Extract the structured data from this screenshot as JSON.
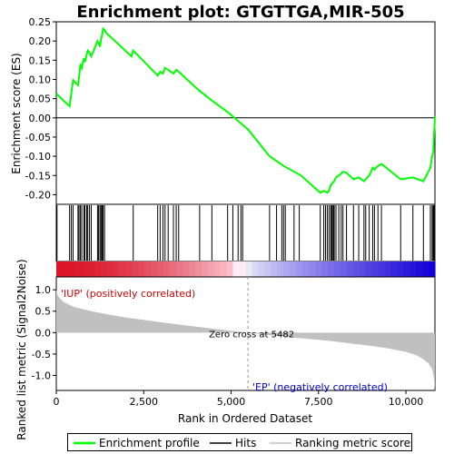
{
  "chart_data": {
    "type": "line",
    "title": "Enrichment plot: GTGTTGA,MIR-505",
    "top_panel": {
      "ylabel": "Enrichment score (ES)",
      "ylim": [
        -0.225,
        0.25
      ],
      "yticks": [
        -0.2,
        -0.15,
        -0.1,
        -0.05,
        0.0,
        0.05,
        0.1,
        0.15,
        0.2,
        0.25
      ],
      "ytick_labels": [
        "-0.20",
        "-0.15",
        "-0.10",
        "-0.05",
        "0.00",
        "0.05",
        "0.10",
        "0.15",
        "0.20",
        "0.25"
      ],
      "es_profile": {
        "x": [
          0,
          380,
          430,
          480,
          620,
          650,
          690,
          730,
          790,
          820,
          870,
          900,
          950,
          1000,
          1180,
          1210,
          1250,
          1280,
          1310,
          1340,
          1380,
          1440,
          1500,
          2150,
          2200,
          2900,
          2970,
          3050,
          3110,
          3200,
          3350,
          3430,
          3500,
          4100,
          4450,
          4900,
          5482,
          6100,
          6500,
          7000,
          7550,
          7650,
          7750,
          7800,
          7850,
          7950,
          8000,
          8080,
          8150,
          8200,
          8300,
          8500,
          8650,
          8800,
          8850,
          8950,
          9050,
          9100,
          9200,
          9300,
          9850,
          10200,
          10500,
          10700,
          10750,
          10780,
          10800,
          10820,
          10830
        ],
        "y": [
          0.063,
          0.03,
          0.065,
          0.098,
          0.085,
          0.105,
          0.14,
          0.13,
          0.155,
          0.145,
          0.165,
          0.175,
          0.17,
          0.16,
          0.2,
          0.195,
          0.185,
          0.205,
          0.215,
          0.232,
          0.228,
          0.22,
          0.215,
          0.16,
          0.175,
          0.11,
          0.12,
          0.115,
          0.13,
          0.125,
          0.115,
          0.125,
          0.12,
          0.07,
          0.045,
          0.015,
          -0.03,
          -0.1,
          -0.125,
          -0.15,
          -0.195,
          -0.19,
          -0.195,
          -0.19,
          -0.175,
          -0.165,
          -0.155,
          -0.15,
          -0.145,
          -0.14,
          -0.143,
          -0.16,
          -0.155,
          -0.165,
          -0.16,
          -0.15,
          -0.13,
          -0.135,
          -0.125,
          -0.12,
          -0.16,
          -0.155,
          -0.165,
          -0.13,
          -0.1,
          -0.09,
          -0.05,
          -0.02,
          0.005
        ]
      }
    },
    "hits": [
      20,
      380,
      430,
      480,
      620,
      650,
      690,
      730,
      790,
      820,
      870,
      900,
      950,
      1000,
      1180,
      1210,
      1250,
      1280,
      1310,
      1340,
      1380,
      2200,
      2900,
      2970,
      3050,
      3110,
      3200,
      3350,
      3430,
      3500,
      4100,
      4450,
      4900,
      5050,
      5200,
      5280,
      5330,
      6100,
      6300,
      6450,
      6500,
      6550,
      6800,
      6950,
      7550,
      7650,
      7700,
      7750,
      7800,
      7850,
      7870,
      7900,
      7930,
      7950,
      8000,
      8080,
      8150,
      8200,
      8300,
      8500,
      8650,
      8800,
      8850,
      8950,
      9050,
      9100,
      9200,
      9300,
      9850,
      10200,
      10500,
      10700,
      10750,
      10780,
      10800,
      10820
    ],
    "bottom_panel": {
      "ylabel": "Ranked list metric (Signal2Noise)",
      "ylim": [
        -1.35,
        1.3
      ],
      "yticks": [
        -1.0,
        -0.5,
        0.0,
        0.5,
        1.0
      ],
      "ytick_labels": [
        "-1.0",
        "-0.5",
        "0.0",
        "0.5",
        "1.0"
      ],
      "metric": {
        "x": [
          0,
          50,
          200,
          500,
          1000,
          1500,
          2000,
          2500,
          3000,
          3500,
          4000,
          4500,
          5000,
          5482,
          6000,
          6500,
          7000,
          7500,
          8000,
          8500,
          9000,
          9500,
          10000,
          10300,
          10500,
          10650,
          10750,
          10800,
          10830
        ],
        "y": [
          1.0,
          0.85,
          0.72,
          0.6,
          0.5,
          0.42,
          0.35,
          0.3,
          0.24,
          0.19,
          0.14,
          0.09,
          0.04,
          0.0,
          -0.05,
          -0.09,
          -0.13,
          -0.17,
          -0.21,
          -0.26,
          -0.31,
          -0.37,
          -0.45,
          -0.53,
          -0.62,
          -0.72,
          -0.85,
          -1.05,
          -1.35
        ]
      },
      "zero_cross_label": "Zero cross at 5482",
      "zero_cross_x": 5482,
      "pos_label": "'IUP' (positively correlated)",
      "neg_label": "'EP' (negatively correlated)"
    },
    "xlabel": "Rank in Ordered Dataset",
    "xlim": [
      0,
      10830
    ],
    "xticks": [
      0,
      2500,
      5000,
      7500,
      10000
    ],
    "xtick_labels": [
      "0",
      "2,500",
      "5,000",
      "7,500",
      "10,000"
    ],
    "legend": {
      "placement": "bottom",
      "entries": [
        {
          "label": "Enrichment profile",
          "color": "#00ff00"
        },
        {
          "label": "Hits",
          "color": "#000000"
        },
        {
          "label": "Ranking metric scores",
          "color": "#c0c0c0"
        }
      ]
    }
  },
  "colors": {
    "profile": "#00ff00",
    "metric_fill": "#c0c0c0",
    "pos_label": "#cc0000",
    "neg_label": "#0000cc",
    "axis": "#000000"
  }
}
